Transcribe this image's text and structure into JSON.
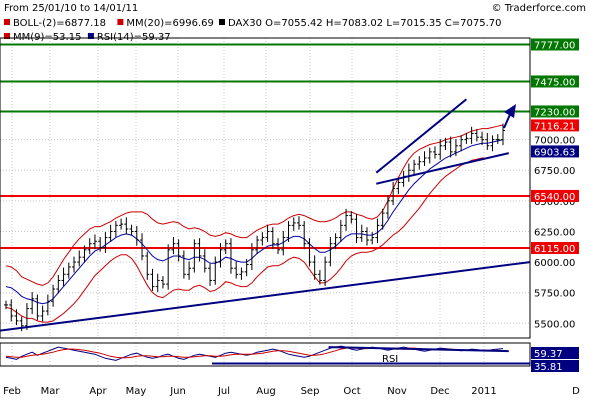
{
  "header": {
    "date_range": "From 25/01/10 to 14/01/11",
    "copyright": "© Traderforce.com",
    "legend_row1": [
      {
        "label": "BOLL-(2)=6877.18",
        "color": "#cc0000",
        "marker": "square"
      },
      {
        "label": "MM(20)=6996.69",
        "color": "#cc0000",
        "marker": "square"
      },
      {
        "label": "DAX30 O=7055.42 H=7083.02 L=7015.35 C=7075.70",
        "color": "#000000",
        "marker": "square"
      }
    ],
    "legend_row2": [
      {
        "label": "MM(9)=53.15",
        "color": "#cc0000",
        "marker": "square"
      },
      {
        "label": "RSI(14)=59.37",
        "color": "#000080",
        "marker": "square"
      }
    ]
  },
  "chart_data": [
    {
      "type": "candlestick",
      "title": "",
      "instrument": "DAX30",
      "ohlc_last": {
        "open": 7055.42,
        "high": 7083.02,
        "low": 7015.35,
        "close": 7075.7
      },
      "x_ticks": [
        "Feb",
        "Mar",
        "Apr",
        "May",
        "Jun",
        "Jul",
        "Aug",
        "Sep",
        "Oct",
        "Nov",
        "Dec",
        "2011",
        "D"
      ],
      "y_ticks": [
        5500,
        5750,
        6000,
        6250,
        6500,
        6750,
        7000
      ],
      "y_tick_labels": [
        "5500.00",
        "5750.00",
        "6000.00",
        "6250.00",
        "6500.00",
        "6750.00",
        "7000.00"
      ],
      "ylim": [
        5380,
        7830
      ],
      "grid": true,
      "y_axis_side": "right",
      "bar_values": [
        5650,
        5560,
        5520,
        5480,
        5620,
        5700,
        5560,
        5600,
        5680,
        5780,
        5850,
        5900,
        5960,
        6000,
        6040,
        6100,
        6150,
        6170,
        6120,
        6200,
        6250,
        6300,
        6310,
        6270,
        6250,
        6180,
        6050,
        5900,
        5800,
        5850,
        5820,
        6100,
        6150,
        6050,
        5900,
        5950,
        6150,
        6050,
        5950,
        5850,
        6000,
        6100,
        6150,
        5950,
        5900,
        5920,
        5980,
        6100,
        6180,
        6200,
        6250,
        6150,
        6100,
        6200,
        6300,
        6320,
        6300,
        6150,
        6000,
        5900,
        5850,
        6000,
        6150,
        6200,
        6300,
        6380,
        6350,
        6200,
        6250,
        6180,
        6200,
        6300,
        6400,
        6500,
        6600,
        6650,
        6700,
        6750,
        6800,
        6820,
        6850,
        6900,
        6880,
        6950,
        6980,
        6900,
        6950,
        7000,
        7010,
        7050,
        7020,
        7000,
        6950,
        7000,
        7000,
        7075
      ],
      "moving_average": [
        5800,
        5790,
        5760,
        5720,
        5700,
        5690,
        5670,
        5660,
        5670,
        5700,
        5750,
        5800,
        5850,
        5900,
        5950,
        6000,
        6050,
        6090,
        6110,
        6140,
        6170,
        6200,
        6220,
        6230,
        6220,
        6190,
        6150,
        6100,
        6050,
        6020,
        6010,
        6030,
        6050,
        6050,
        6030,
        6020,
        6040,
        6040,
        6020,
        5990,
        5990,
        6010,
        6040,
        6030,
        6010,
        6000,
        6000,
        6030,
        6070,
        6100,
        6130,
        6140,
        6140,
        6160,
        6190,
        6210,
        6210,
        6190,
        6150,
        6110,
        6080,
        6080,
        6100,
        6130,
        6170,
        6210,
        6230,
        6230,
        6230,
        6220,
        6220,
        6240,
        6280,
        6340,
        6410,
        6470,
        6530,
        6590,
        6640,
        6680,
        6720,
        6760,
        6790,
        6820,
        6850,
        6870,
        6890,
        6910,
        6930,
        6950,
        6960,
        6970,
        6970,
        6980,
        6990,
        7000
      ],
      "band_width": [
        170,
        170,
        170,
        160,
        160,
        150,
        150,
        150,
        160,
        180,
        200,
        220,
        230,
        240,
        240,
        230,
        220,
        200,
        180,
        170,
        160,
        160,
        160,
        170,
        190,
        220,
        260,
        290,
        300,
        300,
        300,
        290,
        280,
        270,
        260,
        250,
        240,
        230,
        230,
        230,
        220,
        210,
        200,
        200,
        200,
        200,
        200,
        200,
        190,
        180,
        170,
        170,
        170,
        170,
        170,
        170,
        180,
        190,
        210,
        230,
        250,
        250,
        240,
        230,
        220,
        200,
        180,
        160,
        150,
        140,
        130,
        130,
        140,
        160,
        190,
        220,
        240,
        250,
        250,
        240,
        220,
        200,
        180,
        160,
        150,
        140,
        130,
        120,
        120,
        120,
        120,
        120,
        120,
        120,
        120,
        120
      ],
      "horizontal_levels": [
        {
          "value": 7777.0,
          "label": "7777.00",
          "color": "#007700"
        },
        {
          "value": 7475.0,
          "label": "7475.00",
          "color": "#007700"
        },
        {
          "value": 7230.0,
          "label": "7230.00",
          "color": "#007700"
        },
        {
          "value": 6540.0,
          "label": "6540.00",
          "color": "#ee0000"
        },
        {
          "value": 6115.0,
          "label": "6115.00",
          "color": "#ee0000"
        }
      ],
      "marker_labels": [
        {
          "value": 7116.21,
          "label": "7116.21",
          "color": "#ee0000"
        },
        {
          "value": 6903.63,
          "label": "6903.63",
          "color": "#000080"
        }
      ],
      "trendlines": [
        {
          "from": [
            0,
            5440
          ],
          "to": [
            100,
            6000
          ],
          "color": "#000080"
        },
        {
          "from": [
            71,
            6730
          ],
          "to": [
            88,
            7330
          ],
          "color": "#000080"
        },
        {
          "from": [
            71,
            6640
          ],
          "to": [
            96,
            6890
          ],
          "color": "#000080"
        }
      ]
    },
    {
      "type": "line",
      "title": "RSI",
      "xlabel": "",
      "ylabel": "",
      "y_tick_labels": [
        "59.37",
        "35.81"
      ],
      "series": [
        {
          "name": "RSI(14)",
          "color": "#000080",
          "values": [
            42,
            40,
            38,
            44,
            48,
            52,
            46,
            50,
            54,
            58,
            62,
            60,
            58,
            56,
            54,
            52,
            50,
            48,
            44,
            40,
            38,
            36,
            40,
            44,
            48,
            50,
            46,
            42,
            40,
            42,
            46,
            48,
            44,
            40,
            38,
            42,
            46,
            48,
            46,
            44,
            42,
            46,
            50,
            52,
            50,
            48,
            46,
            48,
            52,
            54,
            56,
            58,
            56,
            52,
            48,
            46,
            44,
            42,
            44,
            48,
            52,
            56,
            60,
            62,
            64,
            62,
            58,
            56,
            58,
            60,
            62,
            60,
            58,
            56,
            58,
            60,
            62,
            60,
            58,
            56,
            54,
            56,
            58,
            60,
            59,
            58,
            56,
            55,
            56,
            58,
            57,
            56,
            55,
            57,
            58,
            59
          ]
        },
        {
          "name": "MM(9)",
          "color": "#cc0000",
          "values": [
            44,
            43,
            42,
            42,
            44,
            46,
            47,
            48,
            50,
            52,
            55,
            57,
            58,
            58,
            57,
            56,
            54,
            52,
            50,
            47,
            44,
            42,
            41,
            41,
            42,
            44,
            45,
            45,
            44,
            43,
            43,
            44,
            44,
            43,
            42,
            42,
            43,
            44,
            45,
            45,
            44,
            44,
            45,
            47,
            48,
            48,
            48,
            48,
            49,
            50,
            52,
            54,
            55,
            55,
            54,
            52,
            50,
            48,
            46,
            46,
            47,
            49,
            52,
            55,
            58,
            60,
            60,
            60,
            59,
            59,
            60,
            60,
            60,
            59,
            58,
            58,
            59,
            60,
            60,
            59,
            58,
            57,
            57,
            57,
            58,
            58,
            57,
            56,
            56,
            56,
            56,
            56,
            56,
            56,
            56,
            53
          ]
        }
      ],
      "trendline": {
        "from": [
          62,
          62
        ],
        "to": [
          96,
          54
        ],
        "color": "#000080"
      },
      "baseline": {
        "from": [
          40,
          30
        ],
        "to": [
          100,
          30
        ],
        "color": "#000080"
      }
    }
  ]
}
